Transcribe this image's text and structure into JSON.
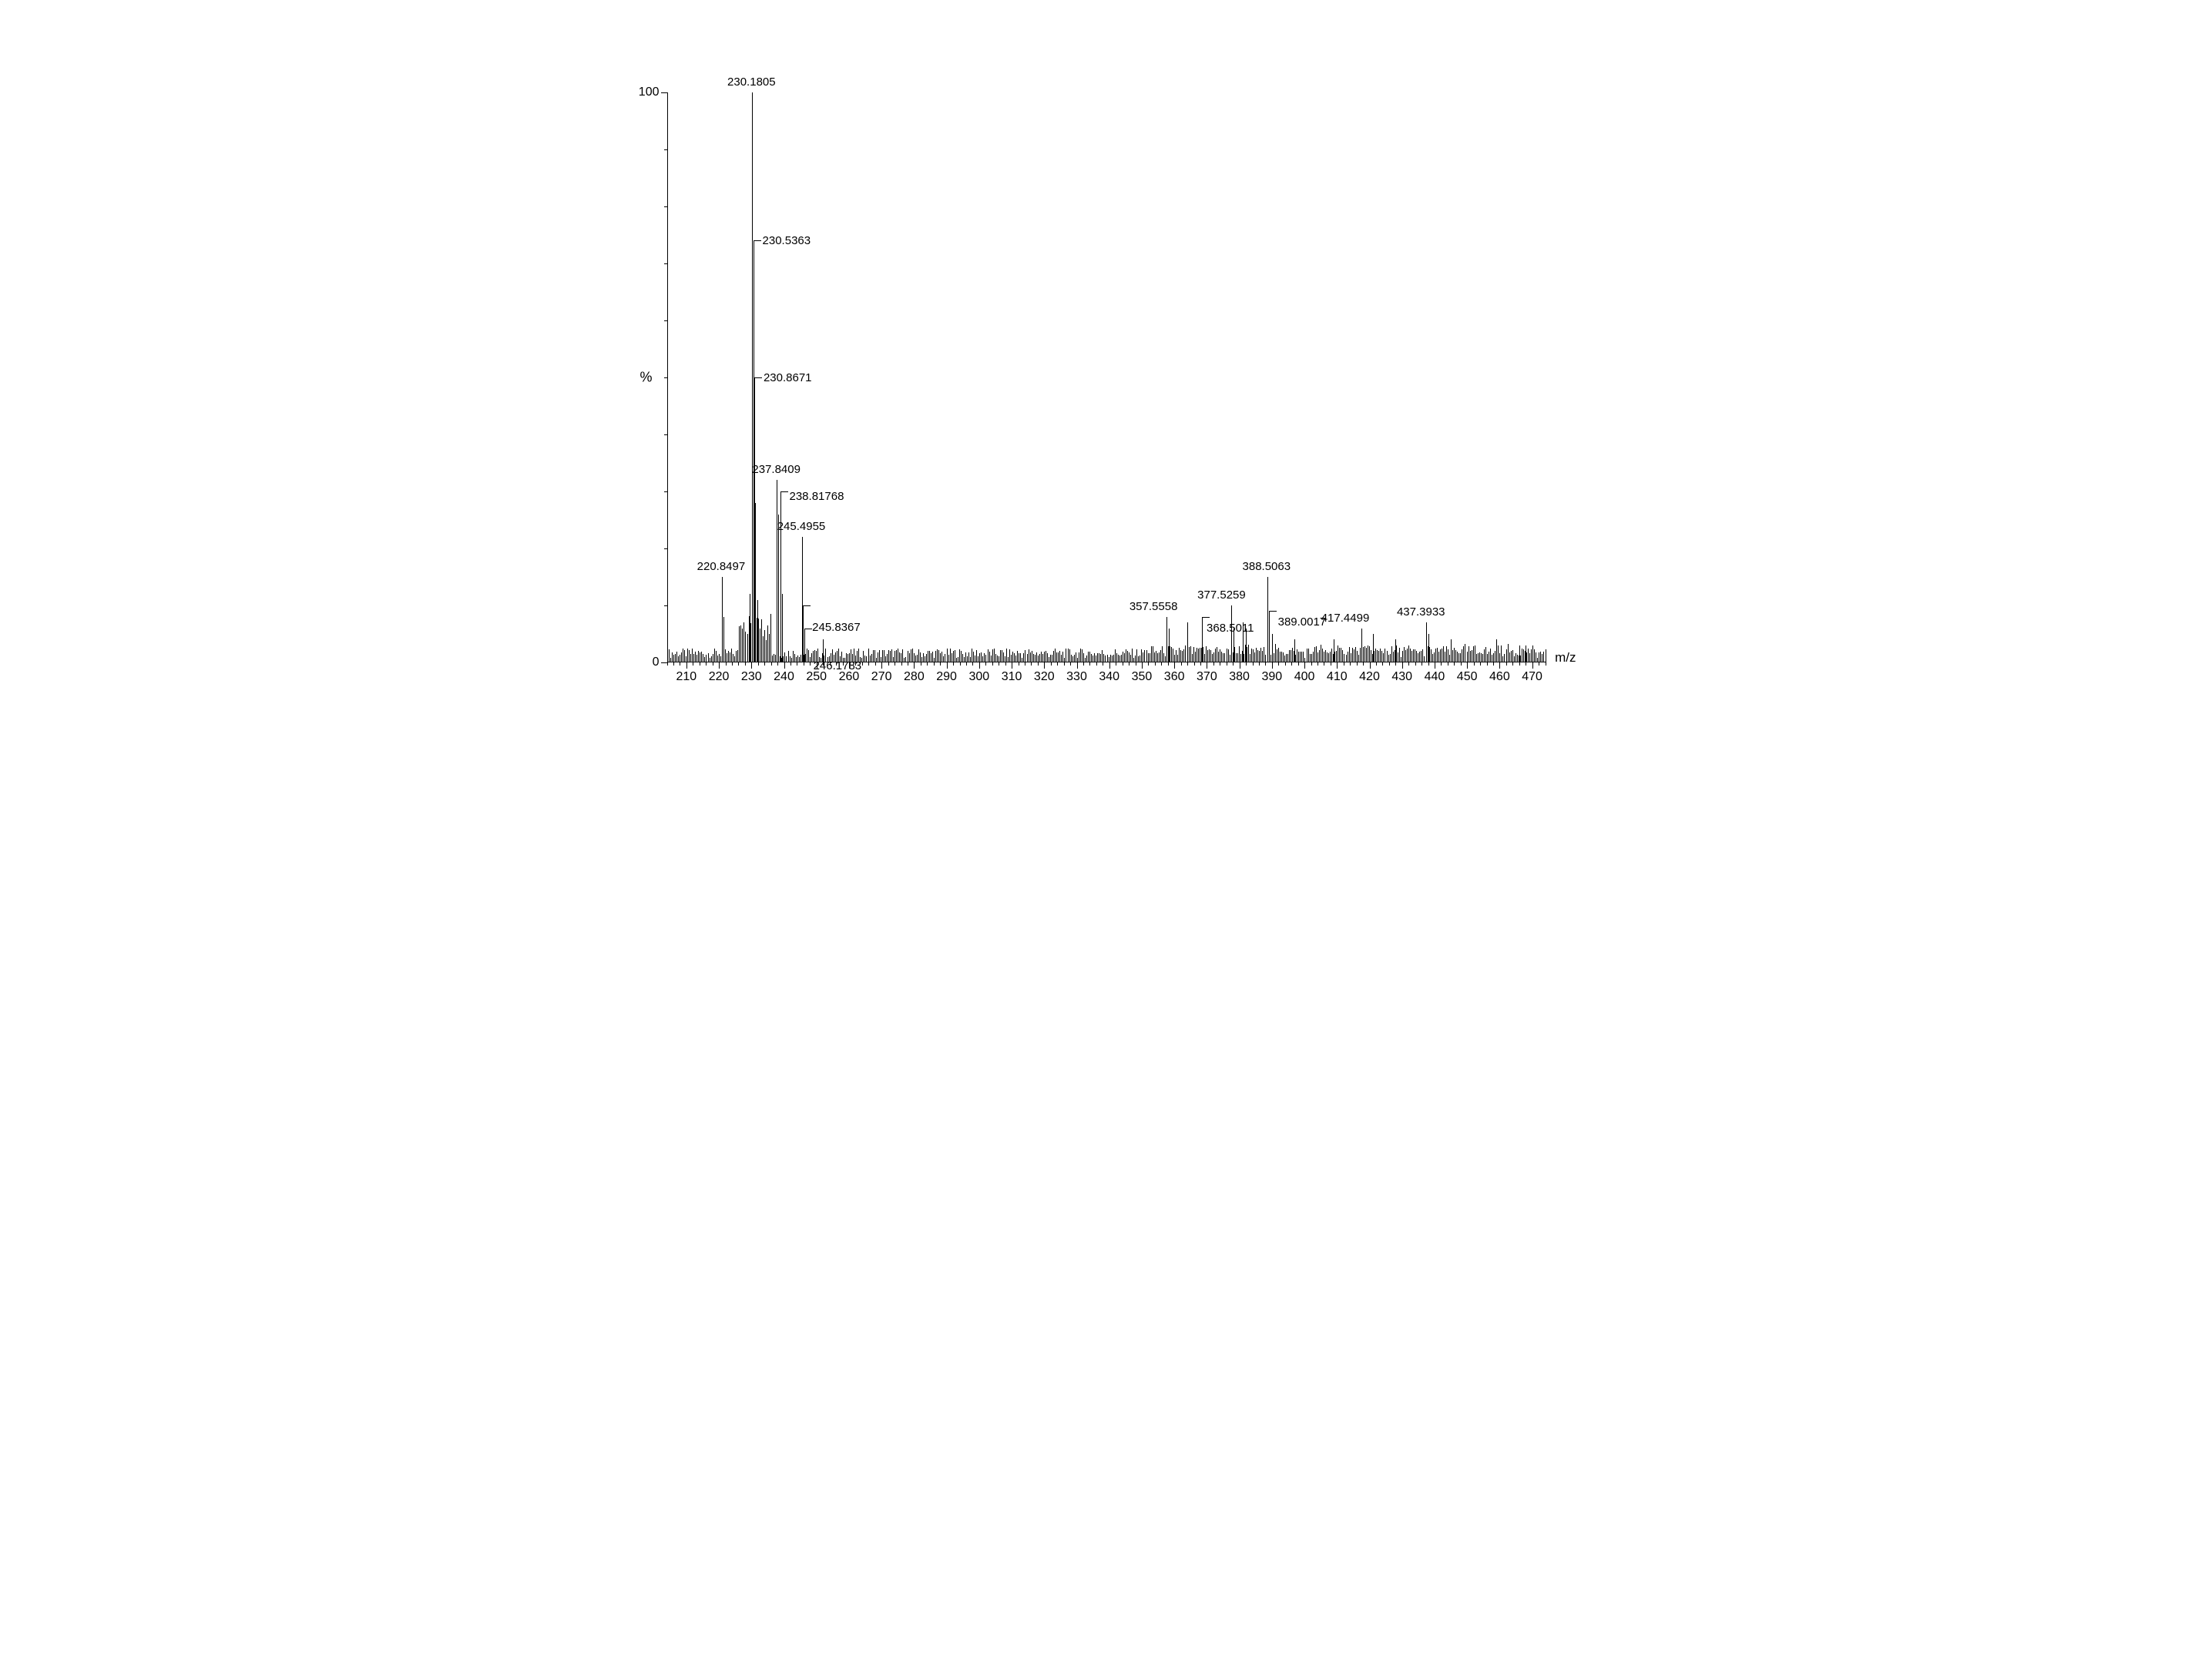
{
  "chart": {
    "type": "mass-spectrum",
    "xlim": [
      204,
      474
    ],
    "ylim": [
      0,
      100
    ],
    "x_major_ticks": [
      210,
      220,
      230,
      240,
      250,
      260,
      270,
      280,
      290,
      300,
      310,
      320,
      330,
      340,
      350,
      360,
      370,
      380,
      390,
      400,
      410,
      420,
      430,
      440,
      450,
      460,
      470
    ],
    "x_minor_step": 2,
    "y_major_ticks": [
      0,
      100
    ],
    "y_minor_step": 10,
    "y_axis_title": "%",
    "x_axis_title": "m/z",
    "background_color": "#ffffff",
    "axis_color": "#000000",
    "peak_color": "#000000",
    "label_color": "#000000",
    "tick_fontsize": 16,
    "label_fontsize": 15,
    "axis_title_fontsize": 18,
    "noise_level_pct": 2.5,
    "peaks": [
      {
        "mz": 220.8497,
        "intensity": 15,
        "label": "220.8497",
        "label_side": "top"
      },
      {
        "mz": 221.5,
        "intensity": 8,
        "label": null
      },
      {
        "mz": 229.5,
        "intensity": 12,
        "label": null
      },
      {
        "mz": 230.1805,
        "intensity": 100,
        "label": "230.1805",
        "label_side": "top"
      },
      {
        "mz": 230.5363,
        "intensity": 74,
        "label": "230.5363",
        "label_side": "right"
      },
      {
        "mz": 230.8671,
        "intensity": 50,
        "label": "230.8671",
        "label_side": "right"
      },
      {
        "mz": 231.2,
        "intensity": 28,
        "label": null
      },
      {
        "mz": 231.8,
        "intensity": 11,
        "label": null
      },
      {
        "mz": 232.5,
        "intensity": 6,
        "label": null
      },
      {
        "mz": 237.8409,
        "intensity": 32,
        "label": "237.8409",
        "label_side": "top"
      },
      {
        "mz": 238.3,
        "intensity": 26,
        "label": null
      },
      {
        "mz": 238.81768,
        "intensity": 30,
        "label": "238.81768",
        "label_side": "right"
      },
      {
        "mz": 239.3,
        "intensity": 12,
        "label": null
      },
      {
        "mz": 245.4955,
        "intensity": 22,
        "label": "245.4955",
        "label_side": "top"
      },
      {
        "mz": 245.8367,
        "intensity": 10,
        "label": "245.8367",
        "label_side": "right"
      },
      {
        "mz": 246.1783,
        "intensity": 6,
        "label": "246.1783",
        "label_side": "right"
      },
      {
        "mz": 252,
        "intensity": 4,
        "label": null
      },
      {
        "mz": 357.5558,
        "intensity": 8,
        "label": "357.5558",
        "label_side": "top"
      },
      {
        "mz": 358.2,
        "intensity": 6,
        "label": null
      },
      {
        "mz": 364,
        "intensity": 7,
        "label": null
      },
      {
        "mz": 368.5011,
        "intensity": 8,
        "label": "368.5011",
        "label_side": "right"
      },
      {
        "mz": 377.5259,
        "intensity": 10,
        "label": "377.5259",
        "label_side": "top"
      },
      {
        "mz": 378.2,
        "intensity": 6,
        "label": null
      },
      {
        "mz": 381,
        "intensity": 7,
        "label": null
      },
      {
        "mz": 382,
        "intensity": 6,
        "label": null
      },
      {
        "mz": 388.5063,
        "intensity": 15,
        "label": "388.5063",
        "label_side": "top"
      },
      {
        "mz": 389.0017,
        "intensity": 9,
        "label": "389.0017",
        "label_side": "right"
      },
      {
        "mz": 390,
        "intensity": 5,
        "label": null
      },
      {
        "mz": 397,
        "intensity": 4,
        "label": null
      },
      {
        "mz": 409,
        "intensity": 4,
        "label": null
      },
      {
        "mz": 417.4499,
        "intensity": 6,
        "label": "417.4499",
        "label_side": "top"
      },
      {
        "mz": 421,
        "intensity": 5,
        "label": null
      },
      {
        "mz": 428,
        "intensity": 4,
        "label": null
      },
      {
        "mz": 437.3933,
        "intensity": 7,
        "label": "437.3933",
        "label_side": "top"
      },
      {
        "mz": 438,
        "intensity": 5,
        "label": null
      },
      {
        "mz": 445,
        "intensity": 4,
        "label": null
      },
      {
        "mz": 459,
        "intensity": 4,
        "label": null
      },
      {
        "mz": 466,
        "intensity": 3,
        "label": null
      },
      {
        "mz": 468,
        "intensity": 3,
        "label": null
      },
      {
        "mz": 470,
        "intensity": 3,
        "label": null
      }
    ]
  }
}
